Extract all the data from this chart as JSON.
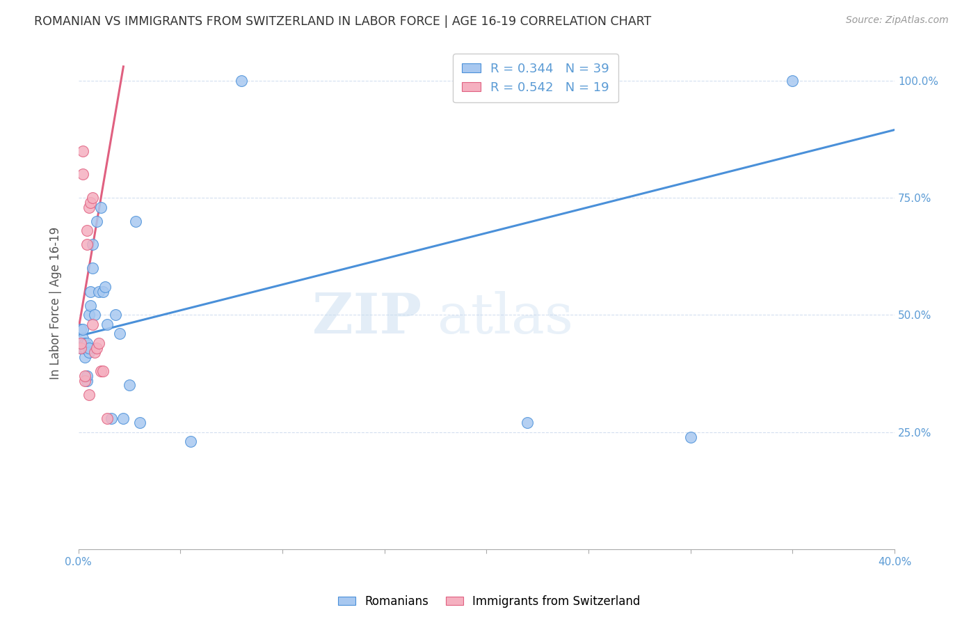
{
  "title": "ROMANIAN VS IMMIGRANTS FROM SWITZERLAND IN LABOR FORCE | AGE 16-19 CORRELATION CHART",
  "source": "Source: ZipAtlas.com",
  "xlabel": "",
  "ylabel": "In Labor Force | Age 16-19",
  "xlim": [
    0.0,
    0.4
  ],
  "ylim": [
    0.0,
    1.05
  ],
  "xticks": [
    0.0,
    0.05,
    0.1,
    0.15,
    0.2,
    0.25,
    0.3,
    0.35,
    0.4
  ],
  "yticks": [
    0.0,
    0.25,
    0.5,
    0.75,
    1.0
  ],
  "ytick_labels": [
    "",
    "25.0%",
    "50.0%",
    "75.0%",
    "100.0%"
  ],
  "xtick_labels": [
    "0.0%",
    "",
    "",
    "",
    "",
    "",
    "",
    "",
    "40.0%"
  ],
  "blue_color": "#A8C8F0",
  "pink_color": "#F5B0C0",
  "trend_blue": "#4A90D9",
  "trend_pink": "#E06080",
  "r_blue": 0.344,
  "n_blue": 39,
  "r_pink": 0.542,
  "n_pink": 19,
  "watermark_zip": "ZIP",
  "watermark_atlas": "atlas",
  "legend_label_blue": "Romanians",
  "legend_label_pink": "Immigrants from Switzerland",
  "blue_x": [
    0.001,
    0.001,
    0.001,
    0.002,
    0.002,
    0.002,
    0.002,
    0.003,
    0.003,
    0.003,
    0.004,
    0.004,
    0.004,
    0.005,
    0.005,
    0.005,
    0.006,
    0.006,
    0.007,
    0.007,
    0.008,
    0.009,
    0.01,
    0.011,
    0.012,
    0.013,
    0.014,
    0.016,
    0.018,
    0.02,
    0.022,
    0.025,
    0.028,
    0.03,
    0.055,
    0.08,
    0.22,
    0.3,
    0.35
  ],
  "blue_y": [
    0.43,
    0.44,
    0.47,
    0.43,
    0.44,
    0.45,
    0.47,
    0.41,
    0.43,
    0.44,
    0.36,
    0.37,
    0.44,
    0.42,
    0.43,
    0.5,
    0.52,
    0.55,
    0.6,
    0.65,
    0.5,
    0.7,
    0.55,
    0.73,
    0.55,
    0.56,
    0.48,
    0.28,
    0.5,
    0.46,
    0.28,
    0.35,
    0.7,
    0.27,
    0.23,
    1.0,
    0.27,
    0.24,
    1.0
  ],
  "pink_x": [
    0.001,
    0.001,
    0.002,
    0.002,
    0.003,
    0.003,
    0.004,
    0.004,
    0.005,
    0.005,
    0.006,
    0.007,
    0.007,
    0.008,
    0.009,
    0.01,
    0.011,
    0.012,
    0.014
  ],
  "pink_y": [
    0.43,
    0.44,
    0.8,
    0.85,
    0.36,
    0.37,
    0.65,
    0.68,
    0.33,
    0.73,
    0.74,
    0.75,
    0.48,
    0.42,
    0.43,
    0.44,
    0.38,
    0.38,
    0.28
  ],
  "blue_trend_x0": 0.0,
  "blue_trend_y0": 0.455,
  "blue_trend_x1": 0.4,
  "blue_trend_y1": 0.895,
  "pink_trend_x0": 0.0,
  "pink_trend_y0": 0.47,
  "pink_trend_x1": 0.022,
  "pink_trend_y1": 1.03
}
